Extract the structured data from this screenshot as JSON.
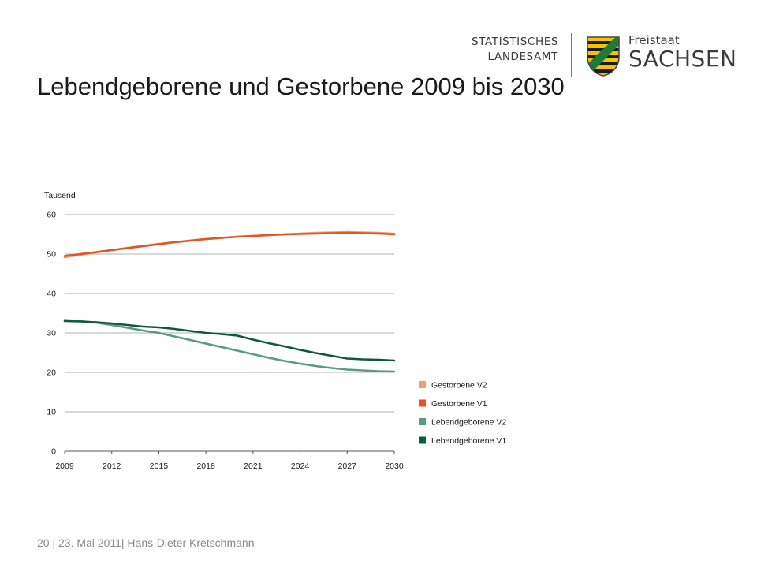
{
  "page": {
    "title": "Lebendgeborene und Gestorbene 2009 bis 2030"
  },
  "logo": {
    "statistical_office_line1": "STATISTISCHES",
    "statistical_office_line2": "LANDESAMT",
    "state_line1": "Freistaat",
    "state_line2": "SACHSEN"
  },
  "footer": {
    "page_number": "20",
    "separator": " | ",
    "date_author": "23. Mai 2011| Hans-Dieter Kretschmann"
  },
  "colors": {
    "gestorbene_v2": "#f0a070",
    "gestorbene_v1": "#e05522",
    "lebendgeborene_v2": "#5a9a80",
    "lebendgeborene_v1": "#0e5a3e"
  },
  "chart_data": {
    "type": "line",
    "title": "",
    "xlabel": "",
    "ylabel": "Tausend",
    "xlim": [
      2009,
      2030
    ],
    "ylim": [
      0,
      60
    ],
    "x_ticks": [
      2009,
      2012,
      2015,
      2018,
      2021,
      2024,
      2027,
      2030
    ],
    "y_ticks": [
      0,
      10,
      20,
      30,
      40,
      50,
      60
    ],
    "grid": "horizontal",
    "legend_position": "right",
    "x": [
      2009,
      2010,
      2011,
      2012,
      2013,
      2014,
      2015,
      2016,
      2017,
      2018,
      2019,
      2020,
      2021,
      2022,
      2023,
      2024,
      2025,
      2026,
      2027,
      2028,
      2029,
      2030
    ],
    "series": [
      {
        "name": "Gestorbene V2",
        "color_key": "gestorbene_v2",
        "values": [
          49.2,
          49.8,
          50.4,
          51.0,
          51.6,
          52.1,
          52.6,
          53.0,
          53.4,
          53.8,
          54.1,
          54.4,
          54.6,
          54.8,
          55.0,
          55.2,
          55.4,
          55.5,
          55.6,
          55.5,
          55.4,
          55.2
        ]
      },
      {
        "name": "Gestorbene V1",
        "color_key": "gestorbene_v1",
        "values": [
          49.5,
          50.0,
          50.5,
          51.0,
          51.5,
          52.0,
          52.5,
          53.0,
          53.4,
          53.8,
          54.1,
          54.4,
          54.6,
          54.8,
          55.0,
          55.1,
          55.2,
          55.3,
          55.4,
          55.3,
          55.2,
          55.0
        ]
      },
      {
        "name": "Lebendgeborene V2",
        "color_key": "lebendgeborene_v2",
        "values": [
          33.3,
          33.0,
          32.6,
          32.0,
          31.3,
          30.6,
          30.0,
          29.1,
          28.2,
          27.3,
          26.4,
          25.5,
          24.6,
          23.7,
          22.9,
          22.2,
          21.6,
          21.1,
          20.7,
          20.5,
          20.3,
          20.2
        ]
      },
      {
        "name": "Lebendgeborene V1",
        "color_key": "lebendgeborene_v1",
        "values": [
          33.0,
          32.9,
          32.7,
          32.4,
          32.0,
          31.6,
          31.4,
          31.0,
          30.5,
          30.0,
          29.7,
          29.3,
          28.3,
          27.4,
          26.6,
          25.7,
          24.9,
          24.2,
          23.5,
          23.3,
          23.2,
          23.0
        ]
      }
    ]
  }
}
